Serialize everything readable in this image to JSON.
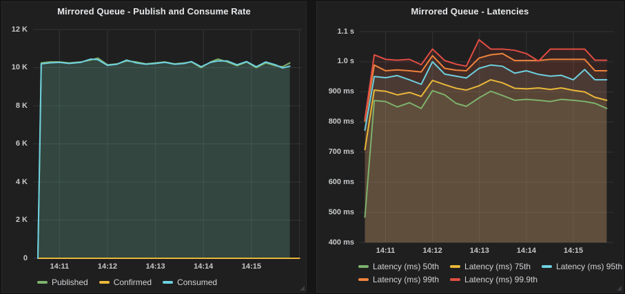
{
  "chart_data": [
    {
      "type": "line",
      "title": "Mirrored Queue - Publish and Consume Rate",
      "xlabel": "",
      "ylabel": "",
      "grid": true,
      "legend_position": "bottom-left",
      "xlim": [
        0.45,
        6.05
      ],
      "ylim": [
        0,
        12000
      ],
      "x_ticks": [
        {
          "t": 1,
          "label": "14:11"
        },
        {
          "t": 2,
          "label": "14:12"
        },
        {
          "t": 3,
          "label": "14:13"
        },
        {
          "t": 4,
          "label": "14:14"
        },
        {
          "t": 5,
          "label": "14:15"
        },
        {
          "t": 6,
          "label": ""
        }
      ],
      "y_ticks": [
        {
          "v": 12000,
          "label": "12 K"
        },
        {
          "v": 10000,
          "label": "10 K"
        },
        {
          "v": 8000,
          "label": "8 K"
        },
        {
          "v": 6000,
          "label": "6 K"
        },
        {
          "v": 4000,
          "label": "4 K"
        },
        {
          "v": 2000,
          "label": "2 K"
        },
        {
          "v": 0,
          "label": "0"
        }
      ],
      "legend_rows": [
        [
          0,
          1,
          2
        ]
      ],
      "series": [
        {
          "name": "Published",
          "color": "#7eb26d",
          "fill_opacity": 0.13,
          "points": [
            [
              0.55,
              0
            ],
            [
              0.62,
              10250
            ],
            [
              0.8,
              10300
            ],
            [
              1.0,
              10300
            ],
            [
              1.2,
              10250
            ],
            [
              1.45,
              10300
            ],
            [
              1.65,
              10400
            ],
            [
              1.8,
              10500
            ],
            [
              2.0,
              10150
            ],
            [
              2.2,
              10200
            ],
            [
              2.4,
              10350
            ],
            [
              2.6,
              10300
            ],
            [
              2.8,
              10200
            ],
            [
              3.0,
              10250
            ],
            [
              3.2,
              10300
            ],
            [
              3.4,
              10200
            ],
            [
              3.6,
              10250
            ],
            [
              3.75,
              10300
            ],
            [
              3.95,
              10000
            ],
            [
              4.15,
              10300
            ],
            [
              4.3,
              10450
            ],
            [
              4.5,
              10300
            ],
            [
              4.7,
              10100
            ],
            [
              4.9,
              10300
            ],
            [
              5.1,
              10000
            ],
            [
              5.3,
              10250
            ],
            [
              5.5,
              10100
            ],
            [
              5.65,
              10050
            ],
            [
              5.8,
              10250
            ]
          ]
        },
        {
          "name": "Confirmed",
          "color": "#eab839",
          "fill_opacity": 0,
          "points": [
            [
              0.55,
              0
            ],
            [
              6.0,
              0
            ]
          ]
        },
        {
          "name": "Consumed",
          "color": "#6ed0e0",
          "fill_opacity": 0.13,
          "points": [
            [
              0.55,
              0
            ],
            [
              0.62,
              10200
            ],
            [
              0.8,
              10250
            ],
            [
              1.0,
              10280
            ],
            [
              1.2,
              10220
            ],
            [
              1.45,
              10280
            ],
            [
              1.65,
              10450
            ],
            [
              1.8,
              10420
            ],
            [
              2.0,
              10120
            ],
            [
              2.2,
              10180
            ],
            [
              2.4,
              10400
            ],
            [
              2.6,
              10250
            ],
            [
              2.8,
              10180
            ],
            [
              3.0,
              10220
            ],
            [
              3.2,
              10280
            ],
            [
              3.4,
              10180
            ],
            [
              3.6,
              10220
            ],
            [
              3.75,
              10320
            ],
            [
              3.95,
              10050
            ],
            [
              4.15,
              10280
            ],
            [
              4.3,
              10350
            ],
            [
              4.5,
              10350
            ],
            [
              4.7,
              10150
            ],
            [
              4.9,
              10320
            ],
            [
              5.1,
              10050
            ],
            [
              5.3,
              10300
            ],
            [
              5.5,
              10150
            ],
            [
              5.65,
              9980
            ],
            [
              5.8,
              10080
            ]
          ]
        }
      ]
    },
    {
      "type": "line",
      "title": "Mirrored Queue - Latencies",
      "xlabel": "",
      "ylabel": "",
      "grid": true,
      "legend_position": "bottom-left",
      "xlim": [
        0.45,
        5.85
      ],
      "ylim": [
        400,
        1100
      ],
      "x_ticks": [
        {
          "t": 1,
          "label": "14:11"
        },
        {
          "t": 2,
          "label": "14:12"
        },
        {
          "t": 3,
          "label": "14:13"
        },
        {
          "t": 4,
          "label": "14:14"
        },
        {
          "t": 5,
          "label": "14:15"
        }
      ],
      "y_ticks": [
        {
          "v": 1100,
          "label": "1.1 s"
        },
        {
          "v": 1000,
          "label": "1.0 s"
        },
        {
          "v": 900,
          "label": "900 ms"
        },
        {
          "v": 800,
          "label": "800 ms"
        },
        {
          "v": 700,
          "label": "700 ms"
        },
        {
          "v": 600,
          "label": "600 ms"
        },
        {
          "v": 500,
          "label": "500 ms"
        },
        {
          "v": 400,
          "label": "400 ms"
        }
      ],
      "legend_rows": [
        [
          0,
          1,
          2
        ],
        [
          3,
          4
        ]
      ],
      "series": [
        {
          "name": "Latency (ms) 50th",
          "color": "#7eb26d",
          "fill_opacity": 0.1,
          "points": [
            [
              0.56,
              484
            ],
            [
              0.76,
              871
            ],
            [
              1.0,
              868
            ],
            [
              1.25,
              850
            ],
            [
              1.51,
              864
            ],
            [
              1.76,
              845
            ],
            [
              2.0,
              904
            ],
            [
              2.26,
              890
            ],
            [
              2.5,
              862
            ],
            [
              2.72,
              852
            ],
            [
              2.99,
              880
            ],
            [
              3.24,
              902
            ],
            [
              3.49,
              888
            ],
            [
              3.75,
              872
            ],
            [
              4.0,
              875
            ],
            [
              4.26,
              872
            ],
            [
              4.51,
              868
            ],
            [
              4.74,
              875
            ],
            [
              5.0,
              872
            ],
            [
              5.24,
              868
            ],
            [
              5.46,
              862
            ],
            [
              5.71,
              845
            ]
          ]
        },
        {
          "name": "Latency (ms) 75th",
          "color": "#eab839",
          "fill_opacity": 0.1,
          "points": [
            [
              0.56,
              708
            ],
            [
              0.76,
              906
            ],
            [
              1.0,
              902
            ],
            [
              1.25,
              890
            ],
            [
              1.51,
              898
            ],
            [
              1.76,
              885
            ],
            [
              2.0,
              938
            ],
            [
              2.26,
              924
            ],
            [
              2.5,
              912
            ],
            [
              2.72,
              906
            ],
            [
              2.99,
              920
            ],
            [
              3.24,
              940
            ],
            [
              3.49,
              930
            ],
            [
              3.75,
              912
            ],
            [
              4.0,
              910
            ],
            [
              4.26,
              913
            ],
            [
              4.51,
              908
            ],
            [
              4.74,
              913
            ],
            [
              5.0,
              905
            ],
            [
              5.24,
              900
            ],
            [
              5.46,
              882
            ],
            [
              5.71,
              872
            ]
          ]
        },
        {
          "name": "Latency (ms) 95th",
          "color": "#6ed0e0",
          "fill_opacity": 0.1,
          "points": [
            [
              0.56,
              773
            ],
            [
              0.76,
              951
            ],
            [
              1.0,
              947
            ],
            [
              1.25,
              954
            ],
            [
              1.51,
              940
            ],
            [
              1.76,
              925
            ],
            [
              2.0,
              1000
            ],
            [
              2.26,
              959
            ],
            [
              2.5,
              952
            ],
            [
              2.72,
              946
            ],
            [
              2.99,
              978
            ],
            [
              3.24,
              989
            ],
            [
              3.49,
              985
            ],
            [
              3.75,
              962
            ],
            [
              4.0,
              970
            ],
            [
              4.26,
              958
            ],
            [
              4.51,
              952
            ],
            [
              4.74,
              955
            ],
            [
              5.0,
              940
            ],
            [
              5.24,
              974
            ],
            [
              5.46,
              940
            ],
            [
              5.71,
              940
            ]
          ]
        },
        {
          "name": "Latency (ms) 99th",
          "color": "#ef843c",
          "fill_opacity": 0.1,
          "points": [
            [
              0.56,
              803
            ],
            [
              0.76,
              989
            ],
            [
              1.0,
              970
            ],
            [
              1.25,
              973
            ],
            [
              1.51,
              970
            ],
            [
              1.76,
              966
            ],
            [
              2.0,
              1020
            ],
            [
              2.26,
              978
            ],
            [
              2.5,
              972
            ],
            [
              2.72,
              970
            ],
            [
              2.99,
              1012
            ],
            [
              3.24,
              1023
            ],
            [
              3.49,
              1027
            ],
            [
              3.75,
              1004
            ],
            [
              4.0,
              1004
            ],
            [
              4.26,
              1004
            ],
            [
              4.51,
              1008
            ],
            [
              4.74,
              1008
            ],
            [
              5.0,
              1008
            ],
            [
              5.24,
              1008
            ],
            [
              5.46,
              970
            ],
            [
              5.71,
              970
            ]
          ]
        },
        {
          "name": "Latency (ms) 99.9th",
          "color": "#e24d42",
          "fill_opacity": 0.1,
          "points": [
            [
              0.56,
              810
            ],
            [
              0.76,
              1023
            ],
            [
              1.0,
              1008
            ],
            [
              1.25,
              1005
            ],
            [
              1.51,
              1008
            ],
            [
              1.76,
              990
            ],
            [
              2.0,
              1042
            ],
            [
              2.26,
              1004
            ],
            [
              2.5,
              992
            ],
            [
              2.72,
              985
            ],
            [
              2.99,
              1073
            ],
            [
              3.24,
              1042
            ],
            [
              3.49,
              1042
            ],
            [
              3.75,
              1038
            ],
            [
              4.0,
              1027
            ],
            [
              4.26,
              1002
            ],
            [
              4.51,
              1042
            ],
            [
              4.74,
              1042
            ],
            [
              5.0,
              1042
            ],
            [
              5.24,
              1042
            ],
            [
              5.46,
              1005
            ],
            [
              5.71,
              1005
            ]
          ]
        }
      ]
    }
  ],
  "colors": {
    "grid": "#333436",
    "axis_text": "#c7c8c9",
    "legend_text": "#d2d3d4",
    "panel_bg": "#1f1f20",
    "page_bg": "#151516"
  }
}
